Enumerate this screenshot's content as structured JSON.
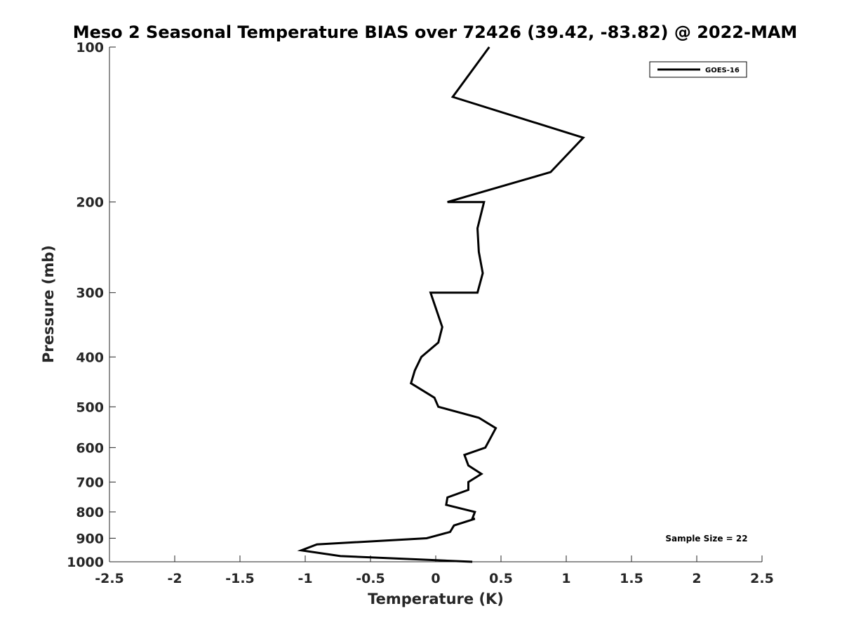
{
  "chart_data": {
    "type": "line",
    "title": "Meso 2 Seasonal Temperature BIAS over 72426 (39.42, -83.82) @ 2022-MAM",
    "xlabel": "Temperature (K)",
    "ylabel": "Pressure (mb)",
    "xlim": [
      -2.5,
      2.5
    ],
    "ylim": [
      100,
      1000
    ],
    "y_scale": "log",
    "y_reversed": true,
    "grid": false,
    "legend_position": "top-right",
    "x_ticks": [
      -2.5,
      -2,
      -1.5,
      -1,
      -0.5,
      0,
      0.5,
      1,
      1.5,
      2,
      2.5
    ],
    "x_tick_labels": [
      "-2.5",
      "-2",
      "-1.5",
      "-1",
      "-0.5",
      "0",
      "0.5",
      "1",
      "1.5",
      "2",
      "2.5"
    ],
    "y_ticks": [
      100,
      200,
      300,
      400,
      500,
      600,
      700,
      800,
      900,
      1000
    ],
    "y_tick_labels": [
      "100",
      "200",
      "300",
      "400",
      "500",
      "600",
      "700",
      "800",
      "900",
      "1000"
    ],
    "series": [
      {
        "name": "GOES-16",
        "color": "#000000",
        "points": [
          {
            "x": 0.41,
            "y": 100
          },
          {
            "x": 0.13,
            "y": 125
          },
          {
            "x": 1.13,
            "y": 150
          },
          {
            "x": 0.88,
            "y": 175
          },
          {
            "x": 0.09,
            "y": 200
          },
          {
            "x": 0.37,
            "y": 200
          },
          {
            "x": 0.32,
            "y": 225
          },
          {
            "x": 0.33,
            "y": 250
          },
          {
            "x": 0.36,
            "y": 275
          },
          {
            "x": 0.32,
            "y": 300
          },
          {
            "x": -0.04,
            "y": 300
          },
          {
            "x": 0.05,
            "y": 350
          },
          {
            "x": 0.02,
            "y": 375
          },
          {
            "x": -0.11,
            "y": 400
          },
          {
            "x": -0.16,
            "y": 425
          },
          {
            "x": -0.19,
            "y": 450
          },
          {
            "x": -0.01,
            "y": 480
          },
          {
            "x": 0.02,
            "y": 500
          },
          {
            "x": 0.33,
            "y": 525
          },
          {
            "x": 0.46,
            "y": 550
          },
          {
            "x": 0.38,
            "y": 600
          },
          {
            "x": 0.22,
            "y": 620
          },
          {
            "x": 0.25,
            "y": 650
          },
          {
            "x": 0.35,
            "y": 675
          },
          {
            "x": 0.25,
            "y": 700
          },
          {
            "x": 0.25,
            "y": 725
          },
          {
            "x": 0.09,
            "y": 750
          },
          {
            "x": 0.08,
            "y": 775
          },
          {
            "x": 0.3,
            "y": 800
          },
          {
            "x": 0.28,
            "y": 825
          },
          {
            "x": 0.3,
            "y": 825
          },
          {
            "x": 0.14,
            "y": 850
          },
          {
            "x": 0.11,
            "y": 875
          },
          {
            "x": -0.07,
            "y": 900
          },
          {
            "x": -0.91,
            "y": 925
          },
          {
            "x": -1.03,
            "y": 950
          },
          {
            "x": -0.73,
            "y": 975
          },
          {
            "x": 0.28,
            "y": 1000
          }
        ]
      }
    ],
    "annotations": [
      "Sample Size = 22"
    ]
  }
}
